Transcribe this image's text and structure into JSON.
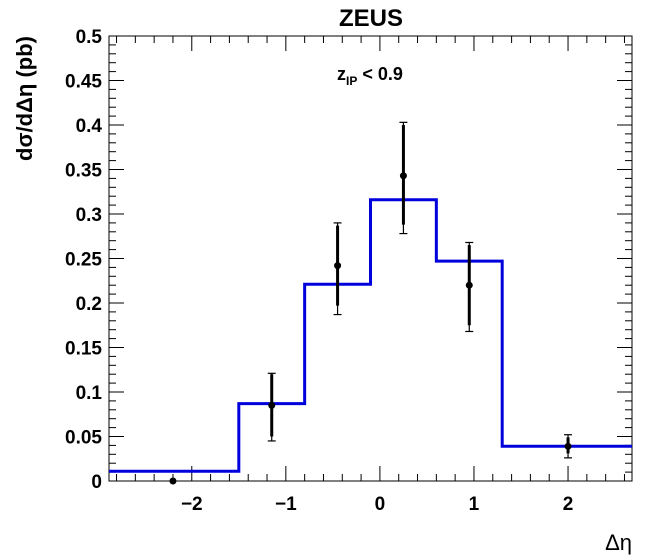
{
  "chart_data": {
    "type": "line",
    "title": "ZEUS",
    "annotation": {
      "main": "z",
      "sub": "IP",
      "rest": " < 0.9"
    },
    "xlabel": "Δη",
    "ylabel": "dσ/dΔη (pb)",
    "xlim": [
      -2.88,
      2.68
    ],
    "ylim": [
      0,
      0.5
    ],
    "x_ticks": [
      -2,
      -1,
      0,
      1,
      2
    ],
    "x_tick_labels": [
      "−2",
      "−1",
      "0",
      "1",
      "2"
    ],
    "y_ticks": [
      0,
      0.05,
      0.1,
      0.15,
      0.2,
      0.25,
      0.3,
      0.35,
      0.4,
      0.45,
      0.5
    ],
    "y_tick_labels": [
      "0",
      "0.05",
      "0.1",
      "0.15",
      "0.2",
      "0.25",
      "0.3",
      "0.35",
      "0.4",
      "0.45",
      "0.5"
    ],
    "grid": false,
    "series": [
      {
        "kind": "histogram",
        "color": "#0000dd",
        "bin_edges": [
          -2.88,
          -1.5,
          -0.8,
          -0.1,
          0.6,
          1.3,
          2.68
        ],
        "values": [
          0.011,
          0.087,
          0.221,
          0.316,
          0.247,
          0.039
        ]
      },
      {
        "kind": "points",
        "color": "#000000",
        "x": [
          -2.2,
          -1.15,
          -0.45,
          0.25,
          0.95,
          2.0
        ],
        "y": [
          0.0,
          0.085,
          0.242,
          0.343,
          0.22,
          0.039
        ],
        "err_low_stat": [
          0.0,
          0.035,
          0.045,
          0.055,
          0.045,
          0.008
        ],
        "err_high_stat": [
          0.0,
          0.035,
          0.045,
          0.057,
          0.045,
          0.01
        ],
        "err_low_tot": [
          0.0,
          0.04,
          0.055,
          0.065,
          0.052,
          0.013
        ],
        "err_high_tot": [
          0.0,
          0.036,
          0.048,
          0.06,
          0.048,
          0.013
        ]
      }
    ]
  }
}
